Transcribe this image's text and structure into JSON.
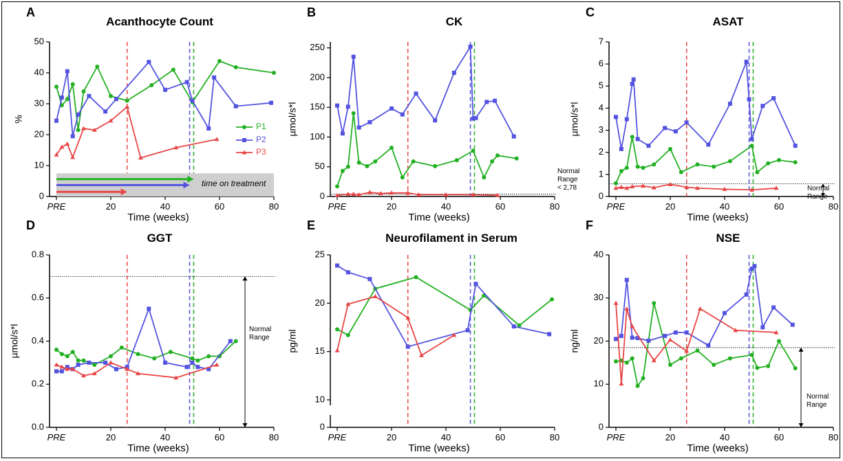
{
  "legend": {
    "p1": "P1",
    "p2": "P2",
    "p3": "P3"
  },
  "treatment_label": "time on treatment",
  "colors": {
    "P1": "#22b022",
    "P2": "#5353e0",
    "P3": "#e84545"
  },
  "treatment_lines": {
    "P3": 26,
    "P2": 49,
    "P1": 50.5
  },
  "chart_data": [
    {
      "letter": "A",
      "type": "line",
      "title": "Acanthocyte Count",
      "xlabel": "Time (weeks)",
      "ylabel": "%",
      "xlim": [
        0,
        80
      ],
      "xticks": [
        "PRE",
        "20",
        "40",
        "60",
        "80"
      ],
      "ylim": [
        0,
        50
      ],
      "yticks": [
        "0",
        "10",
        "20",
        "30",
        "40",
        "50"
      ],
      "series": [
        {
          "name": "P1",
          "marker": "circle",
          "x": [
            0,
            2,
            4,
            6,
            8,
            10,
            15,
            20,
            26,
            35,
            43,
            50,
            60,
            66,
            80
          ],
          "y": [
            35.5,
            29.5,
            31.5,
            36.3,
            21.5,
            34,
            42,
            32.5,
            31,
            36,
            41,
            30.5,
            43.8,
            41.8,
            40
          ]
        },
        {
          "name": "P2",
          "marker": "square",
          "x": [
            0,
            2,
            4,
            6,
            8,
            12,
            18,
            22,
            34,
            40,
            48,
            50,
            56,
            58,
            66,
            79
          ],
          "y": [
            24.5,
            32,
            40.5,
            19.5,
            26.5,
            32.5,
            27.5,
            31.5,
            43.5,
            34.5,
            37,
            31,
            22,
            38.5,
            29.2,
            30.3
          ]
        },
        {
          "name": "P3",
          "marker": "triangle",
          "x": [
            0,
            2,
            4,
            6,
            10,
            14,
            20,
            26,
            31,
            44,
            59
          ],
          "y": [
            13.5,
            16,
            17,
            12.7,
            22,
            21.5,
            24.5,
            29,
            12.5,
            15.8,
            18.5
          ]
        }
      ]
    },
    {
      "letter": "B",
      "type": "line",
      "title": "CK",
      "xlabel": "Time (weeks)",
      "ylabel": "µmol/s*l",
      "xlim": [
        0,
        80
      ],
      "xticks": [
        "PRE",
        "20",
        "40",
        "60",
        "80"
      ],
      "ylim": [
        0,
        260
      ],
      "yticks": [
        "0",
        "50",
        "100",
        "150",
        "200",
        "250"
      ],
      "ref_line": 4,
      "annotation": [
        "Normal",
        "Range",
        "< 2,78"
      ],
      "series": [
        {
          "name": "P1",
          "marker": "circle",
          "x": [
            0,
            2,
            4,
            6,
            8,
            11,
            14,
            20,
            24,
            28,
            36,
            44,
            50,
            54,
            57,
            59,
            66
          ],
          "y": [
            17,
            43,
            50,
            140,
            57,
            51,
            59,
            82,
            32,
            59,
            51,
            61,
            77,
            32,
            59,
            69,
            64
          ]
        },
        {
          "name": "P2",
          "marker": "square",
          "x": [
            0,
            2,
            4,
            6,
            8,
            12,
            20,
            24,
            29,
            36,
            43,
            49,
            50,
            51,
            55,
            58,
            65
          ],
          "y": [
            153,
            106,
            151,
            235,
            116,
            125,
            148,
            138,
            173,
            128,
            208,
            252,
            131,
            132,
            159,
            161,
            101
          ]
        },
        {
          "name": "P3",
          "marker": "triangle",
          "x": [
            0,
            4,
            6,
            8,
            12,
            16,
            20,
            26,
            30,
            40,
            50,
            59
          ],
          "y": [
            2,
            4,
            4,
            3,
            7,
            5,
            6,
            6,
            3,
            3,
            3,
            2
          ]
        }
      ]
    },
    {
      "letter": "C",
      "type": "line",
      "title": "ASAT",
      "xlabel": "Time (weeks)",
      "ylabel": "µmol/s*l",
      "xlim": [
        0,
        80
      ],
      "xticks": [
        "PRE",
        "20",
        "40",
        "60",
        "80"
      ],
      "ylim": [
        0,
        7
      ],
      "yticks": [
        "0",
        "1",
        "2",
        "3",
        "4",
        "5",
        "6",
        "7"
      ],
      "ref_line": 0.58,
      "annotation": [
        "Normal",
        "Range"
      ],
      "series": [
        {
          "name": "P1",
          "marker": "circle",
          "x": [
            0,
            2,
            4,
            6,
            8,
            10,
            14,
            20,
            24,
            30,
            36,
            42,
            50,
            52,
            56,
            60,
            66
          ],
          "y": [
            0.6,
            1.15,
            1.3,
            2.7,
            1.35,
            1.3,
            1.45,
            2.15,
            1.1,
            1.45,
            1.35,
            1.6,
            2.3,
            1.1,
            1.5,
            1.65,
            1.55
          ]
        },
        {
          "name": "P2",
          "marker": "square",
          "x": [
            0,
            2,
            4,
            6,
            6.5,
            8,
            12,
            18,
            22,
            26,
            34,
            42,
            48,
            49,
            50,
            54,
            58,
            66
          ],
          "y": [
            3.6,
            2.15,
            3.5,
            5.1,
            5.3,
            2.6,
            2.3,
            3.1,
            2.95,
            3.35,
            2.35,
            4.2,
            6.1,
            4.4,
            2.6,
            4.1,
            4.45,
            2.3
          ]
        },
        {
          "name": "P3",
          "marker": "triangle",
          "x": [
            0,
            2,
            4,
            6,
            10,
            14,
            20,
            26,
            30,
            40,
            50,
            59
          ],
          "y": [
            0.38,
            0.42,
            0.38,
            0.45,
            0.48,
            0.4,
            0.55,
            0.42,
            0.38,
            0.33,
            0.3,
            0.38
          ]
        }
      ]
    },
    {
      "letter": "D",
      "type": "line",
      "title": "GGT",
      "xlabel": "Time (weeks)",
      "ylabel": "µmol/s*l",
      "xlim": [
        0,
        80
      ],
      "xticks": [
        "PRE",
        "20",
        "40",
        "60",
        "80"
      ],
      "ylim": [
        0,
        0.8
      ],
      "yticks": [
        "0.0",
        "0.2",
        "0.4",
        "0.6",
        "0.8"
      ],
      "ref_line": 0.7,
      "annotation": [
        "Normal",
        "Range"
      ],
      "series": [
        {
          "name": "P1",
          "marker": "circle",
          "x": [
            0,
            2,
            4,
            6,
            8,
            10,
            14,
            20,
            24,
            30,
            36,
            42,
            50,
            52,
            56,
            60,
            66
          ],
          "y": [
            0.36,
            0.34,
            0.33,
            0.35,
            0.31,
            0.31,
            0.29,
            0.33,
            0.37,
            0.34,
            0.32,
            0.35,
            0.32,
            0.31,
            0.33,
            0.33,
            0.4
          ]
        },
        {
          "name": "P2",
          "marker": "square",
          "x": [
            0,
            2,
            4,
            6,
            8,
            12,
            18,
            22,
            26,
            34,
            40,
            48,
            50,
            52,
            56,
            64
          ],
          "y": [
            0.26,
            0.26,
            0.28,
            0.27,
            0.29,
            0.3,
            0.3,
            0.27,
            0.28,
            0.55,
            0.3,
            0.28,
            0.3,
            0.28,
            0.27,
            0.4
          ]
        },
        {
          "name": "P3",
          "marker": "triangle",
          "x": [
            0,
            2,
            4,
            6,
            10,
            14,
            20,
            26,
            30,
            44,
            59
          ],
          "y": [
            0.29,
            0.28,
            0.27,
            0.27,
            0.24,
            0.25,
            0.3,
            0.27,
            0.25,
            0.23,
            0.29
          ]
        }
      ]
    },
    {
      "letter": "E",
      "type": "line",
      "title": "Neurofilament in Serum",
      "xlabel": "Time (weeks)",
      "ylabel": "pg/ml",
      "xlim": [
        0,
        80
      ],
      "xticks": [
        "PRE",
        "20",
        "40",
        "60",
        "80"
      ],
      "ylim": [
        0,
        25
      ],
      "yticks": [
        "0",
        "10",
        "15",
        "20",
        "25"
      ],
      "axis_break": true,
      "series": [
        {
          "name": "P1",
          "marker": "circle",
          "x": [
            0,
            4,
            14,
            29,
            49,
            54,
            67,
            79
          ],
          "y": [
            17.3,
            16.7,
            21.5,
            22.7,
            19.3,
            20.8,
            17.7,
            20.4
          ]
        },
        {
          "name": "P2",
          "marker": "square",
          "x": [
            0,
            4,
            12,
            26,
            48,
            51,
            65,
            78
          ],
          "y": [
            23.9,
            23.2,
            22.5,
            15.5,
            17.2,
            22,
            17.6,
            16.8
          ]
        },
        {
          "name": "P3",
          "marker": "triangle",
          "x": [
            0,
            4,
            14,
            26,
            31,
            43
          ],
          "y": [
            15.1,
            19.9,
            20.7,
            18.5,
            14.6,
            16.7
          ]
        }
      ]
    },
    {
      "letter": "F",
      "type": "line",
      "title": "NSE",
      "xlabel": "Time (weeks)",
      "ylabel": "ng/ml",
      "xlim": [
        0,
        80
      ],
      "xticks": [
        "PRE",
        "20",
        "40",
        "60",
        "80"
      ],
      "ylim": [
        0,
        40
      ],
      "yticks": [
        "0",
        "10",
        "20",
        "30",
        "40"
      ],
      "ref_line": 18.5,
      "annotation": [
        "Normal",
        "Range"
      ],
      "series": [
        {
          "name": "P1",
          "marker": "circle",
          "x": [
            0,
            2,
            4,
            6,
            8,
            10,
            14,
            20,
            24,
            30,
            36,
            42,
            50,
            52,
            56,
            60,
            66
          ],
          "y": [
            15.3,
            15.5,
            15,
            16,
            9.6,
            11.4,
            28.8,
            14.5,
            16,
            17.8,
            14.5,
            16,
            16.8,
            13.8,
            14.2,
            20,
            13.7
          ]
        },
        {
          "name": "P2",
          "marker": "square",
          "x": [
            0,
            2,
            4,
            6,
            8,
            12,
            18,
            22,
            26,
            34,
            40,
            48,
            50,
            51,
            54,
            58,
            65
          ],
          "y": [
            20.5,
            21.2,
            34.2,
            20.8,
            20.7,
            20.1,
            21.2,
            22,
            22,
            19,
            26.5,
            30.8,
            36.8,
            37.4,
            23.2,
            27.8,
            23.8
          ]
        },
        {
          "name": "P3",
          "marker": "triangle",
          "x": [
            0,
            2,
            4,
            6,
            14,
            20,
            26,
            31,
            44,
            59
          ],
          "y": [
            28.8,
            10.1,
            27.5,
            23.4,
            15.5,
            20.3,
            17.7,
            27.5,
            22.5,
            22
          ]
        }
      ]
    }
  ]
}
